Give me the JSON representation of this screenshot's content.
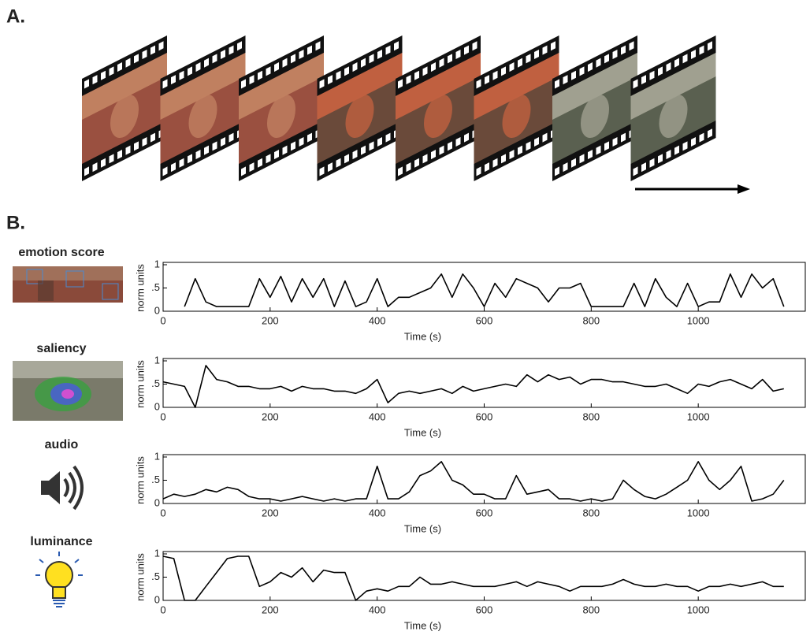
{
  "panel_labels": [
    "A.",
    "B."
  ],
  "chart_data": [
    {
      "type": "line",
      "title": "emotion score",
      "ylabel": "norm units",
      "xlabel": "Time (s)",
      "color": "#000000",
      "xlim": [
        0,
        1200
      ],
      "xticks": [
        0,
        200,
        400,
        600,
        800,
        1000
      ],
      "ylim": [
        0,
        1
      ],
      "yticks": [
        0,
        {
          "value": 0.5,
          "label": ".5"
        },
        1
      ],
      "x": [
        0,
        20,
        40,
        60,
        80,
        100,
        120,
        140,
        160,
        180,
        200,
        220,
        240,
        260,
        280,
        300,
        320,
        340,
        360,
        380,
        400,
        420,
        440,
        460,
        480,
        500,
        520,
        540,
        560,
        580,
        600,
        620,
        640,
        660,
        680,
        700,
        720,
        740,
        760,
        780,
        800,
        820,
        840,
        860,
        880,
        900,
        920,
        940,
        960,
        980,
        1000,
        1020,
        1040,
        1060,
        1080,
        1100,
        1120,
        1140,
        1160
      ],
      "values": [
        null,
        null,
        0.1,
        0.7,
        0.2,
        0.1,
        0.1,
        0.1,
        0.1,
        0.7,
        0.3,
        0.75,
        0.2,
        0.7,
        0.3,
        0.7,
        0.1,
        0.65,
        0.1,
        0.2,
        0.7,
        0.1,
        0.3,
        0.3,
        0.4,
        0.5,
        0.8,
        0.3,
        0.8,
        0.5,
        0.1,
        0.6,
        0.3,
        0.7,
        0.6,
        0.5,
        0.2,
        0.5,
        0.5,
        0.6,
        0.1,
        0.1,
        0.1,
        0.1,
        0.6,
        0.1,
        0.7,
        0.3,
        0.1,
        0.6,
        0.1,
        0.2,
        0.2,
        0.8,
        0.3,
        0.8,
        0.5,
        0.7,
        0.1
      ]
    },
    {
      "type": "line",
      "title": "saliency",
      "ylabel": "norm units",
      "xlabel": "Time (s)",
      "color": "#000000",
      "xlim": [
        0,
        1200
      ],
      "xticks": [
        0,
        200,
        400,
        600,
        800,
        1000
      ],
      "ylim": [
        0,
        1
      ],
      "yticks": [
        0,
        {
          "value": 0.5,
          "label": ".5"
        },
        1
      ],
      "x": [
        0,
        20,
        40,
        60,
        80,
        100,
        120,
        140,
        160,
        180,
        200,
        220,
        240,
        260,
        280,
        300,
        320,
        340,
        360,
        380,
        400,
        420,
        440,
        460,
        480,
        500,
        520,
        540,
        560,
        580,
        600,
        620,
        640,
        660,
        680,
        700,
        720,
        740,
        760,
        780,
        800,
        820,
        840,
        860,
        880,
        900,
        920,
        940,
        960,
        980,
        1000,
        1020,
        1040,
        1060,
        1080,
        1100,
        1120,
        1140,
        1160
      ],
      "values": [
        0.55,
        0.5,
        0.45,
        0,
        0.9,
        0.6,
        0.55,
        0.45,
        0.45,
        0.4,
        0.4,
        0.45,
        0.35,
        0.45,
        0.4,
        0.4,
        0.35,
        0.35,
        0.3,
        0.4,
        0.6,
        0.1,
        0.3,
        0.35,
        0.3,
        0.35,
        0.4,
        0.3,
        0.45,
        0.35,
        0.4,
        0.45,
        0.5,
        0.45,
        0.7,
        0.55,
        0.7,
        0.6,
        0.65,
        0.5,
        0.6,
        0.6,
        0.55,
        0.55,
        0.5,
        0.45,
        0.45,
        0.5,
        0.4,
        0.3,
        0.5,
        0.45,
        0.55,
        0.6,
        0.5,
        0.4,
        0.6,
        0.35,
        0.4
      ]
    },
    {
      "type": "line",
      "title": "audio",
      "ylabel": "norm units",
      "xlabel": "Time (s)",
      "color": "#000000",
      "xlim": [
        0,
        1200
      ],
      "xticks": [
        0,
        200,
        400,
        600,
        800,
        1000
      ],
      "ylim": [
        0,
        1
      ],
      "yticks": [
        0,
        {
          "value": 0.5,
          "label": ".5"
        },
        1
      ],
      "x": [
        0,
        20,
        40,
        60,
        80,
        100,
        120,
        140,
        160,
        180,
        200,
        220,
        240,
        260,
        280,
        300,
        320,
        340,
        360,
        380,
        400,
        420,
        440,
        460,
        480,
        500,
        520,
        540,
        560,
        580,
        600,
        620,
        640,
        660,
        680,
        700,
        720,
        740,
        760,
        780,
        800,
        820,
        840,
        860,
        880,
        900,
        920,
        940,
        960,
        980,
        1000,
        1020,
        1040,
        1060,
        1080,
        1100,
        1120,
        1140,
        1160
      ],
      "values": [
        0.1,
        0.2,
        0.15,
        0.2,
        0.3,
        0.25,
        0.35,
        0.3,
        0.15,
        0.1,
        0.1,
        0.05,
        0.1,
        0.15,
        0.1,
        0.05,
        0.1,
        0.05,
        0.1,
        0.1,
        0.8,
        0.1,
        0.1,
        0.25,
        0.6,
        0.7,
        0.9,
        0.5,
        0.4,
        0.2,
        0.2,
        0.1,
        0.1,
        0.6,
        0.2,
        0.25,
        0.3,
        0.1,
        0.1,
        0.05,
        0.1,
        0.05,
        0.1,
        0.5,
        0.3,
        0.15,
        0.1,
        0.2,
        0.35,
        0.5,
        0.9,
        0.5,
        0.3,
        0.5,
        0.8,
        0.05,
        0.1,
        0.2,
        0.5
      ]
    },
    {
      "type": "line",
      "title": "luminance",
      "ylabel": "norm units",
      "xlabel": "Time (s)",
      "color": "#000000",
      "xlim": [
        0,
        1200
      ],
      "xticks": [
        0,
        200,
        400,
        600,
        800,
        1000
      ],
      "ylim": [
        0,
        1
      ],
      "yticks": [
        0,
        {
          "value": 0.5,
          "label": ".5"
        },
        1
      ],
      "x": [
        0,
        20,
        40,
        60,
        80,
        100,
        120,
        140,
        160,
        180,
        200,
        220,
        240,
        260,
        280,
        300,
        320,
        340,
        360,
        380,
        400,
        420,
        440,
        460,
        480,
        500,
        520,
        540,
        560,
        580,
        600,
        620,
        640,
        660,
        680,
        700,
        720,
        740,
        760,
        780,
        800,
        820,
        840,
        860,
        880,
        900,
        920,
        940,
        960,
        980,
        1000,
        1020,
        1040,
        1060,
        1080,
        1100,
        1120,
        1140,
        1160
      ],
      "values": [
        0.95,
        0.9,
        0,
        0,
        0.3,
        0.6,
        0.9,
        0.95,
        0.95,
        0.3,
        0.4,
        0.6,
        0.5,
        0.7,
        0.4,
        0.65,
        0.6,
        0.6,
        0,
        0.2,
        0.25,
        0.2,
        0.3,
        0.3,
        0.5,
        0.35,
        0.35,
        0.4,
        0.35,
        0.3,
        0.3,
        0.3,
        0.35,
        0.4,
        0.3,
        0.4,
        0.35,
        0.3,
        0.2,
        0.3,
        0.3,
        0.3,
        0.35,
        0.45,
        0.35,
        0.3,
        0.3,
        0.35,
        0.3,
        0.3,
        0.2,
        0.3,
        0.3,
        0.35,
        0.3,
        0.35,
        0.4,
        0.3,
        0.3
      ]
    }
  ]
}
